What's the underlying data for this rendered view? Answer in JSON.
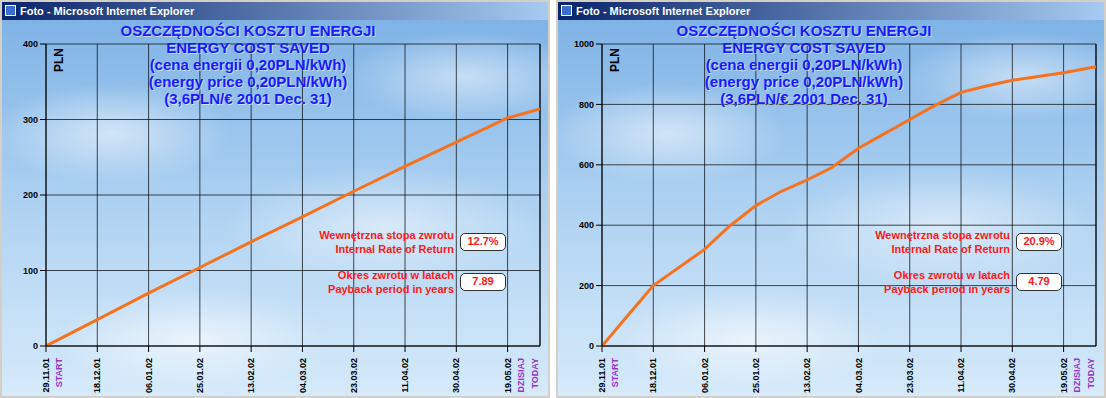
{
  "chart_data": [
    {
      "type": "line",
      "window_title": "Foto - Microsoft Internet Explorer",
      "title": [
        "OSZCZĘDNOŚCI KOSZTU ENERGJI",
        "ENERGY COST SAVED",
        "(cena energii 0,20PLN/kWh)",
        "(energy price 0,20PLN/kWh)",
        "(3,6PLN/€ 2001 Dec. 31)"
      ],
      "y_label": "PLN",
      "start_label": "START",
      "end_labels": [
        "DZISIAJ",
        "TODAY"
      ],
      "x": [
        "2001-11-29",
        "2001-12-18",
        "2002-01-06",
        "2002-01-25",
        "2002-02-13",
        "2002-03-04",
        "2002-03-23",
        "2002-04-11",
        "2002-04-30",
        "2002-05-19",
        "2002-05-31"
      ],
      "values": [
        0,
        35,
        70,
        104,
        138,
        171,
        205,
        238,
        270,
        302,
        314
      ],
      "color": "#f5731f",
      "xlim": [
        "2001-11-29",
        "2002-05-31"
      ],
      "xticks": [
        {
          "value": "2001-11-29",
          "label": "29.11.01"
        },
        {
          "value": "2001-12-18",
          "label": "18.12.01"
        },
        {
          "value": "2002-01-06",
          "label": "06.01.02"
        },
        {
          "value": "2002-01-25",
          "label": "25.01.02"
        },
        {
          "value": "2002-02-13",
          "label": "13.02.02"
        },
        {
          "value": "2002-03-04",
          "label": "04.03.02"
        },
        {
          "value": "2002-03-23",
          "label": "23.03.02"
        },
        {
          "value": "2002-04-11",
          "label": "11.04.02"
        },
        {
          "value": "2002-04-30",
          "label": "30.04.02"
        },
        {
          "value": "2002-05-19",
          "label": "19.05.02"
        }
      ],
      "ylim": [
        0,
        400
      ],
      "yticks": [
        0,
        100,
        200,
        300,
        400
      ],
      "grid": true,
      "annotations": [
        {
          "lines": [
            "Wewnętrzna stopa zwrotu",
            "Internal Rate of Return"
          ],
          "box": "12.7%"
        },
        {
          "lines": [
            "Okres zwrotu w latach",
            "Payback period in years"
          ],
          "box": "7.89"
        }
      ]
    },
    {
      "type": "line",
      "window_title": "Foto - Microsoft Internet Explorer",
      "title": [
        "OSZCZĘDNOŚCI KOSZTU ENERGJI",
        "ENERGY COST SAVED",
        "(cena energii 0,20PLN/kWh)",
        "(energy price 0,20PLN/kWh)",
        "(3,6PLN/€ 2001 Dec. 31)"
      ],
      "y_label": "PLN",
      "start_label": "START",
      "end_labels": [
        "DZISIAJ",
        "TODAY"
      ],
      "x": [
        "2001-11-29",
        "2001-12-08",
        "2001-12-18",
        "2002-01-06",
        "2002-01-15",
        "2002-01-25",
        "2002-02-03",
        "2002-02-13",
        "2002-02-22",
        "2002-03-04",
        "2002-03-14",
        "2002-03-23",
        "2002-04-01",
        "2002-04-11",
        "2002-04-20",
        "2002-04-30",
        "2002-05-19",
        "2002-05-31"
      ],
      "values": [
        0,
        95,
        200,
        320,
        395,
        465,
        510,
        550,
        590,
        655,
        705,
        750,
        795,
        840,
        860,
        880,
        905,
        925
      ],
      "color": "#f5731f",
      "xlim": [
        "2001-11-29",
        "2002-05-31"
      ],
      "xticks": [
        {
          "value": "2001-11-29",
          "label": "29.11.01"
        },
        {
          "value": "2001-12-18",
          "label": "18.12.01"
        },
        {
          "value": "2002-01-06",
          "label": "06.01.02"
        },
        {
          "value": "2002-01-25",
          "label": "25.01.02"
        },
        {
          "value": "2002-02-13",
          "label": "13.02.02"
        },
        {
          "value": "2002-03-04",
          "label": "04.03.02"
        },
        {
          "value": "2002-03-23",
          "label": "23.03.02"
        },
        {
          "value": "2002-04-11",
          "label": "11.04.02"
        },
        {
          "value": "2002-04-30",
          "label": "30.04.02"
        },
        {
          "value": "2002-05-19",
          "label": "19.05.02"
        }
      ],
      "ylim": [
        0,
        1000
      ],
      "yticks": [
        0,
        200,
        400,
        600,
        800,
        1000
      ],
      "grid": true,
      "annotations": [
        {
          "lines": [
            "Wewnętrzna stopa zwrotu",
            "Internal Rate of Return"
          ],
          "box": "20.9%"
        },
        {
          "lines": [
            "Okres zwrotu w latach",
            "Payback period in years"
          ],
          "box": "4.79"
        }
      ]
    }
  ]
}
